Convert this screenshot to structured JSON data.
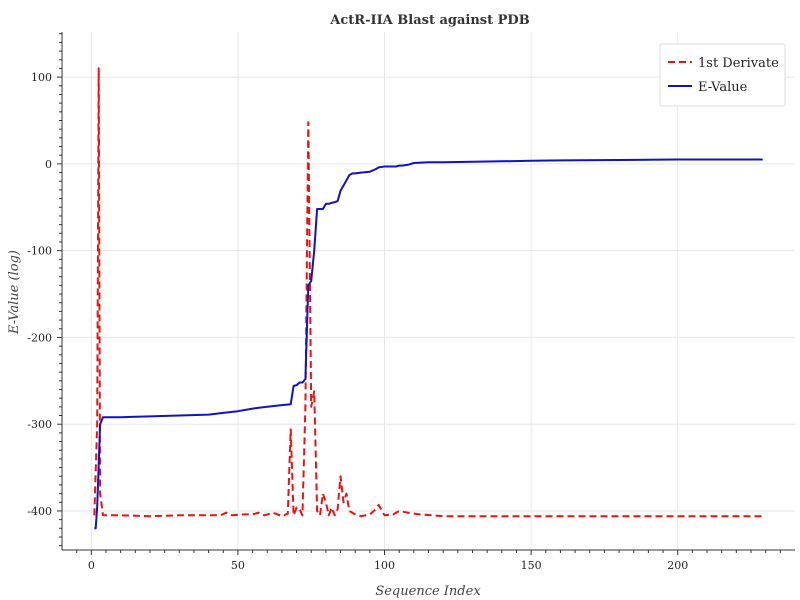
{
  "chart_data": {
    "type": "line",
    "title": "ActR-IIA Blast against PDB",
    "xlabel": "Sequence Index",
    "ylabel": "E-Value (log)",
    "xlim": [
      -10,
      240
    ],
    "ylim": [
      -445,
      152
    ],
    "xticks": [
      0,
      50,
      100,
      150,
      200
    ],
    "yticks": [
      -400,
      -300,
      -200,
      -100,
      0,
      100
    ],
    "grid": true,
    "legend_position": "top-right",
    "series": [
      {
        "name": "1st Derivate",
        "color": "#ee1111",
        "style": "dashed",
        "x": [
          1,
          2,
          2.5,
          3,
          4,
          6,
          10,
          20,
          30,
          40,
          44,
          46,
          48,
          52,
          55,
          57,
          59,
          62,
          65,
          67,
          68,
          69,
          70,
          71,
          72,
          73,
          74,
          75,
          76,
          77,
          78,
          79,
          80,
          81,
          82,
          83,
          84,
          85,
          86,
          87,
          88,
          90,
          92,
          95,
          97,
          98,
          100,
          103,
          105,
          108,
          112,
          120,
          140,
          160,
          180,
          200,
          220,
          229
        ],
        "y": [
          -405,
          -300,
          110,
          -380,
          -405,
          -405,
          -405,
          -406,
          -405,
          -405,
          -405,
          -402,
          -405,
          -404,
          -404,
          -402,
          -405,
          -402,
          -406,
          -403,
          -306,
          -405,
          -396,
          -398,
          -405,
          -280,
          48,
          -280,
          -262,
          -400,
          -405,
          -380,
          -390,
          -405,
          -396,
          -405,
          -398,
          -360,
          -390,
          -380,
          -400,
          -404,
          -406,
          -404,
          -398,
          -393,
          -405,
          -404,
          -400,
          -402,
          -404,
          -406,
          -406,
          -406,
          -406,
          -406,
          -406,
          -406
        ]
      },
      {
        "name": "E-Value",
        "color": "#1111cc",
        "style": "solid",
        "x": [
          1,
          1.5,
          2,
          3,
          4,
          10,
          20,
          30,
          40,
          45,
          50,
          55,
          60,
          65,
          68,
          69,
          70,
          71,
          72,
          73,
          74,
          75,
          76,
          77,
          78,
          79,
          80,
          81,
          82,
          83,
          84,
          85,
          86,
          87,
          88,
          89,
          90,
          92,
          95,
          97,
          98,
          100,
          102,
          104,
          105,
          106,
          108,
          110,
          115,
          120,
          130,
          140,
          150,
          160,
          180,
          200,
          220,
          229
        ],
        "y": [
          -420,
          -420,
          -395,
          -300,
          -292,
          -292,
          -291,
          -290,
          -289,
          -287,
          -285,
          -282,
          -280,
          -278,
          -277,
          -256,
          -255,
          -252,
          -252,
          -248,
          -140,
          -135,
          -100,
          -52,
          -52,
          -52,
          -46,
          -46,
          -45,
          -44,
          -43,
          -31,
          -25,
          -19,
          -13,
          -11,
          -11,
          -10,
          -9,
          -6,
          -4,
          -3,
          -3,
          -3,
          -2,
          -2,
          -1,
          1,
          2,
          2,
          2.5,
          3,
          3.5,
          4,
          4.5,
          5,
          5,
          5
        ]
      }
    ]
  }
}
